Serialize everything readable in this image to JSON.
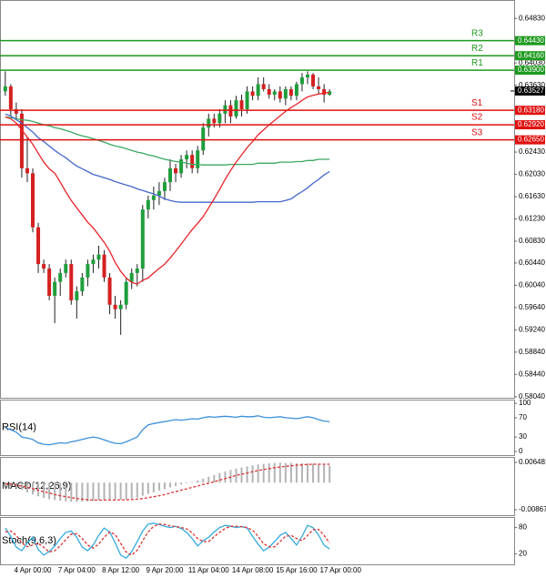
{
  "chart_data": [
    {
      "type": "candlestick",
      "categories": [
        null,
        null,
        null,
        null,
        null,
        "4 Apr 00:00",
        null,
        null,
        null,
        null,
        null,
        null,
        null,
        "7 Apr 04:00",
        null,
        null,
        null,
        null,
        null,
        null,
        null,
        "8 Apr 12:00",
        null,
        null,
        null,
        null,
        null,
        null,
        null,
        "9 Apr 20:00",
        null,
        null,
        null,
        null,
        null,
        null,
        null,
        "11 Apr 04:00",
        null,
        null,
        null,
        null,
        null,
        null,
        null,
        "14 Apr 08:00",
        null,
        null,
        null,
        null,
        null,
        null,
        null,
        "15 Apr 16:00",
        null,
        null,
        null,
        null,
        null,
        null,
        null,
        "17 Apr 00:00"
      ],
      "open": [
        0.6352,
        0.6361,
        0.632,
        0.6312,
        0.6214,
        0.6205,
        0.6108,
        0.6042,
        0.6034,
        0.5985,
        0.601,
        0.6026,
        0.6042,
        0.5977,
        0.5993,
        0.6018,
        0.6042,
        0.605,
        0.6059,
        0.6018,
        0.5969,
        0.5961,
        0.5969,
        0.601,
        0.6026,
        0.6034,
        0.614,
        0.6157,
        0.6165,
        0.6173,
        0.6189,
        0.6214,
        0.6205,
        0.623,
        0.6238,
        0.6214,
        0.6246,
        0.6287,
        0.6303,
        0.6295,
        0.6312,
        0.6327,
        0.6307,
        0.6336,
        0.632,
        0.6352,
        0.6344,
        0.6365,
        0.6356,
        0.6346,
        0.6352,
        0.6339,
        0.6356,
        0.6344,
        0.6365,
        0.6377,
        0.6382,
        0.6361,
        0.6356,
        0.6346,
        null,
        null
      ],
      "high": [
        0.6388,
        0.6365,
        0.6332,
        0.632,
        0.6271,
        0.6214,
        0.6116,
        0.605,
        0.6042,
        0.6018,
        0.6034,
        0.605,
        0.605,
        0.6002,
        0.6026,
        0.605,
        0.6059,
        0.6075,
        0.6067,
        0.6026,
        0.5985,
        0.5977,
        0.6018,
        0.6034,
        0.6042,
        0.6148,
        0.6165,
        0.6181,
        0.6189,
        0.6197,
        0.623,
        0.6222,
        0.6238,
        0.6246,
        0.6246,
        0.6254,
        0.6295,
        0.6312,
        0.6312,
        0.632,
        0.6336,
        0.6336,
        0.6344,
        0.6346,
        0.6361,
        0.6361,
        0.6377,
        0.6377,
        0.6365,
        0.6356,
        0.6361,
        0.6361,
        0.6361,
        0.6369,
        0.6385,
        0.6388,
        0.6385,
        0.6377,
        0.6365,
        0.6356,
        null,
        null
      ],
      "low": [
        0.6344,
        0.6307,
        0.6303,
        0.6197,
        0.6189,
        0.6099,
        0.6026,
        0.6026,
        0.5977,
        0.5936,
        0.5985,
        0.6018,
        0.5969,
        0.5944,
        0.5985,
        0.6002,
        0.6026,
        0.6034,
        0.601,
        0.5952,
        0.5944,
        0.5915,
        0.5961,
        0.5997,
        0.6002,
        0.601,
        0.6124,
        0.614,
        0.6148,
        0.6157,
        0.6173,
        0.6189,
        0.6197,
        0.6214,
        0.6205,
        0.6205,
        0.6238,
        0.6271,
        0.6287,
        0.6287,
        0.6295,
        0.6295,
        0.6303,
        0.6307,
        0.6312,
        0.6336,
        0.6336,
        0.6352,
        0.6339,
        0.6336,
        0.6332,
        0.6327,
        0.6336,
        0.6336,
        0.6352,
        0.6365,
        0.6356,
        0.6346,
        0.6332,
        0.6344,
        null,
        null
      ],
      "close": [
        0.6361,
        0.632,
        0.6312,
        0.6214,
        0.6205,
        0.6108,
        0.6042,
        0.6034,
        0.5985,
        0.601,
        0.6026,
        0.6042,
        0.5977,
        0.5993,
        0.6018,
        0.6042,
        0.605,
        0.6059,
        0.6018,
        0.5969,
        0.5961,
        0.5969,
        0.601,
        0.6026,
        0.6034,
        0.614,
        0.6157,
        0.6165,
        0.6173,
        0.6189,
        0.6214,
        0.6205,
        0.623,
        0.6238,
        0.6214,
        0.6246,
        0.6287,
        0.6303,
        0.6295,
        0.6312,
        0.6327,
        0.6307,
        0.6336,
        0.632,
        0.6352,
        0.6344,
        0.6365,
        0.6356,
        0.6346,
        0.6352,
        0.6339,
        0.6356,
        0.6344,
        0.6365,
        0.6377,
        0.6382,
        0.6361,
        0.6356,
        0.6346,
        0.6352,
        null,
        null
      ],
      "up_color": "#1f9e3c",
      "down_color": "#d42020",
      "series": [
        {
          "color": "#3aa860",
          "values": [
            0.6306,
            0.6305,
            0.6303,
            0.6301,
            0.63,
            0.6298,
            0.6295,
            0.6292,
            0.629,
            0.6287,
            0.6285,
            0.6282,
            0.6279,
            0.6275,
            0.6272,
            0.627,
            0.6267,
            0.6264,
            0.6261,
            0.6257,
            0.6254,
            0.6252,
            0.6249,
            0.6246,
            0.6243,
            0.6241,
            0.6238,
            0.6236,
            0.6233,
            0.623,
            0.6228,
            0.6226,
            0.6225,
            0.6223,
            0.6221,
            0.6221,
            0.622,
            0.622,
            0.622,
            0.622,
            0.622,
            0.6221,
            0.6221,
            0.6221,
            0.6221,
            0.6221,
            0.6223,
            0.6223,
            0.6223,
            0.6223,
            0.6225,
            0.6225,
            0.6225,
            0.6226,
            0.6226,
            0.6228,
            0.6228,
            0.623,
            0.623,
            0.623,
            null,
            null
          ]
        },
        {
          "color": "#4466cc",
          "values": [
            0.6311,
            0.6308,
            0.6301,
            0.6295,
            0.6287,
            0.6279,
            0.6269,
            0.6262,
            0.6254,
            0.6246,
            0.6239,
            0.6233,
            0.6225,
            0.6218,
            0.6213,
            0.6208,
            0.6203,
            0.62,
            0.6197,
            0.6194,
            0.619,
            0.6187,
            0.6184,
            0.6181,
            0.6177,
            0.6174,
            0.6171,
            0.6168,
            0.6164,
            0.6159,
            0.6156,
            0.6154,
            0.6153,
            0.6153,
            0.6153,
            0.6153,
            0.6153,
            0.6153,
            0.6153,
            0.6153,
            0.6153,
            0.6153,
            0.6153,
            0.6153,
            0.6153,
            0.6153,
            0.6154,
            0.6154,
            0.6154,
            0.6154,
            0.6154,
            0.6156,
            0.6159,
            0.6166,
            0.6172,
            0.6179,
            0.6187,
            0.6194,
            0.6202,
            0.6208,
            null,
            null
          ]
        },
        {
          "color": "#e8242a",
          "values": [
            0.6306,
            0.6303,
            0.6295,
            0.6283,
            0.627,
            0.6257,
            0.6241,
            0.6225,
            0.6213,
            0.6205,
            0.6189,
            0.6172,
            0.6156,
            0.6143,
            0.613,
            0.6117,
            0.6107,
            0.6094,
            0.6081,
            0.6065,
            0.6045,
            0.6029,
            0.6017,
            0.6009,
            0.6006,
            0.6013,
            0.6017,
            0.6026,
            0.6034,
            0.6042,
            0.6053,
            0.6065,
            0.6078,
            0.6091,
            0.6104,
            0.6115,
            0.6127,
            0.6143,
            0.6159,
            0.6176,
            0.6194,
            0.621,
            0.6225,
            0.6238,
            0.6251,
            0.6262,
            0.6274,
            0.6283,
            0.6292,
            0.63,
            0.6308,
            0.6316,
            0.6323,
            0.6329,
            0.6336,
            0.6342,
            0.6345,
            0.6347,
            0.6349,
            0.635,
            null,
            null
          ]
        }
      ],
      "levels": {
        "names": [
          "R3",
          "R2",
          "R1",
          "S1",
          "S2",
          "S3"
        ],
        "values": [
          0.6443,
          0.6416,
          0.639,
          0.6318,
          0.6292,
          0.6265
        ],
        "value_labels": [
          "0.64430",
          "0.64160",
          "0.63900",
          "0.63180",
          "0.62920",
          "0.62650"
        ],
        "colors": [
          "#1e9a1e",
          "#1e9a1e",
          "#1e9a1e",
          "#e01010",
          "#e01010",
          "#e01010"
        ]
      },
      "last_price": {
        "value": 0.63527,
        "label": "0.63527"
      },
      "ylim": [
        0.5802,
        0.6516
      ],
      "yticks": [
        {
          "value": 0.6483,
          "label": "0.64830"
        },
        {
          "value": 0.6403,
          "label": "0.64030"
        },
        {
          "value": 0.6363,
          "label": "0.63630"
        },
        {
          "value": 0.6243,
          "label": "0.62430"
        },
        {
          "value": 0.6203,
          "label": "0.62030"
        },
        {
          "value": 0.6163,
          "label": "0.61630"
        },
        {
          "value": 0.6123,
          "label": "0.61230"
        },
        {
          "value": 0.6083,
          "label": "0.60830"
        },
        {
          "value": 0.6044,
          "label": "0.60440"
        },
        {
          "value": 0.6004,
          "label": "0.60040"
        },
        {
          "value": 0.5964,
          "label": "0.59640"
        },
        {
          "value": 0.5924,
          "label": "0.59240"
        },
        {
          "value": 0.5884,
          "label": "0.58840"
        },
        {
          "value": 0.5844,
          "label": "0.58440"
        },
        {
          "value": 0.5804,
          "label": "0.58040"
        }
      ]
    },
    {
      "type": "line",
      "title": "RSI(14)",
      "series": [
        {
          "color": "#3b8fd9",
          "values": [
            49,
            45,
            40,
            30,
            28,
            25,
            18,
            15,
            14,
            16,
            18,
            17,
            20,
            22,
            25,
            28,
            30,
            28,
            24,
            20,
            17,
            16,
            20,
            25,
            30,
            45,
            55,
            58,
            60,
            62,
            64,
            66,
            65,
            66,
            68,
            67,
            70,
            72,
            71,
            72,
            73,
            72,
            71,
            73,
            72,
            72,
            74,
            71,
            70,
            71,
            72,
            70,
            69,
            68,
            70,
            72,
            70,
            66,
            63,
            62
          ]
        }
      ],
      "ylim": [
        0,
        100
      ],
      "yticks": [
        100,
        70,
        30,
        0
      ]
    },
    {
      "type": "macd",
      "title": "MACD(12,26,9)",
      "histogram": {
        "color": "#b4b4b4",
        "values": [
          -0.0008,
          -0.0012,
          -0.0017,
          -0.0023,
          -0.0031,
          -0.0038,
          -0.0044,
          -0.0049,
          -0.0053,
          -0.0056,
          -0.0058,
          -0.006,
          -0.0061,
          -0.0062,
          -0.0061,
          -0.006,
          -0.0058,
          -0.0056,
          -0.0054,
          -0.0054,
          -0.0054,
          -0.0055,
          -0.0054,
          -0.0051,
          -0.0048,
          -0.0042,
          -0.0036,
          -0.0031,
          -0.0025,
          -0.0021,
          -0.0015,
          -0.0011,
          -0.0006,
          -0.0002,
          0.0002,
          0.0007,
          0.0013,
          0.0019,
          0.0025,
          0.0031,
          0.0036,
          0.004,
          0.0045,
          0.0049,
          0.0052,
          0.0055,
          0.0058,
          0.006,
          0.0062,
          0.0063,
          0.0064,
          0.0063,
          0.0063,
          0.0062,
          0.0062,
          0.0062,
          0.0061,
          0.0059,
          0.0057,
          0.0055
        ]
      },
      "series": [
        {
          "color": "#dd3333",
          "dashed": true,
          "values": [
            -0.0003,
            -0.0005,
            -0.0008,
            -0.0011,
            -0.0015,
            -0.0019,
            -0.0024,
            -0.0029,
            -0.0033,
            -0.0038,
            -0.0042,
            -0.0045,
            -0.0048,
            -0.0051,
            -0.0053,
            -0.0055,
            -0.0056,
            -0.0056,
            -0.0056,
            -0.0056,
            -0.0056,
            -0.0055,
            -0.0055,
            -0.0054,
            -0.0053,
            -0.0051,
            -0.0048,
            -0.0045,
            -0.0042,
            -0.0038,
            -0.0033,
            -0.0029,
            -0.0024,
            -0.002,
            -0.0015,
            -0.0011,
            -0.0006,
            -0.0002,
            0.0003,
            0.0008,
            0.0013,
            0.0018,
            0.0023,
            0.0027,
            0.0031,
            0.0035,
            0.0039,
            0.0042,
            0.0045,
            0.0048,
            0.005,
            0.0052,
            0.0054,
            0.0056,
            0.0057,
            0.0058,
            0.0059,
            0.0059,
            0.0059,
            0.0059
          ]
        }
      ],
      "ylim": [
        -0.008677,
        0.006481
      ],
      "yticks": [
        0.006481,
        -0.008677
      ]
    },
    {
      "type": "line",
      "title": "Stoch(9,6,3)",
      "series": [
        {
          "color": "#33aadd",
          "values": [
            79,
            60,
            35,
            27,
            45,
            58,
            30,
            17,
            25,
            38,
            55,
            69,
            72,
            58,
            35,
            27,
            40,
            62,
            79,
            70,
            45,
            17,
            10,
            25,
            48,
            72,
            88,
            90,
            87,
            83,
            80,
            83,
            78,
            69,
            55,
            38,
            50,
            58,
            70,
            80,
            85,
            83,
            80,
            82,
            79,
            60,
            42,
            27,
            35,
            48,
            62,
            69,
            55,
            40,
            60,
            85,
            80,
            63,
            40,
            31
          ]
        },
        {
          "color": "#dd3333",
          "dashed": true,
          "values": [
            70,
            72,
            62,
            45,
            36,
            40,
            44,
            35,
            24,
            27,
            38,
            52,
            65,
            66,
            55,
            40,
            33,
            42,
            58,
            70,
            64,
            44,
            24,
            17,
            28,
            50,
            70,
            83,
            88,
            87,
            84,
            82,
            80,
            77,
            68,
            55,
            48,
            48,
            59,
            69,
            78,
            83,
            83,
            82,
            80,
            74,
            60,
            43,
            36,
            36,
            48,
            60,
            62,
            55,
            50,
            62,
            75,
            76,
            62,
            45
          ]
        }
      ],
      "ylim": [
        0,
        100
      ],
      "yticks": [
        80,
        20
      ]
    }
  ]
}
